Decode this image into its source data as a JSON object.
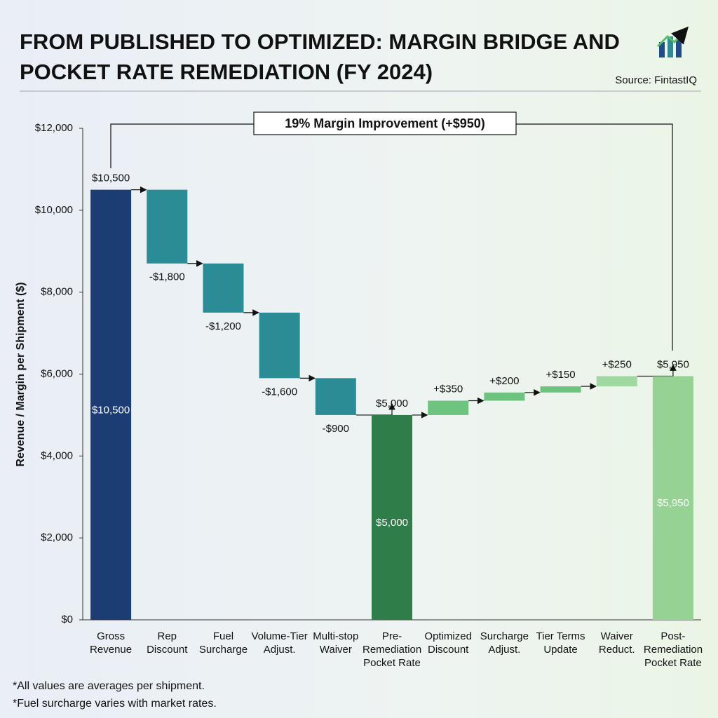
{
  "chart_data": {
    "type": "waterfall",
    "title": "FROM PUBLISHED TO OPTIMIZED: MARGIN BRIDGE AND POCKET RATE REMEDIATION (FY 2024)",
    "source": "Source: FintastIQ",
    "y_label": "Revenue / Margin per Shipment ($)",
    "annotation": "19% Margin Improvement (+$950)",
    "footnotes": [
      "*All values are averages per shipment.",
      "*Fuel surcharge varies with market rates."
    ],
    "categories": [
      "Gross Revenue",
      "Rep Discount",
      "Fuel Surcharge",
      "Volume-Tier Adjust.",
      "Multi-stop Waiver",
      "Pre-Remediation Pocket Rate",
      "Optimized Discount",
      "Surcharge Adjust.",
      "Tier Terms Update",
      "Waiver Reduct.",
      "Post-Remediation Pocket Rate"
    ],
    "values": [
      10500,
      -1800,
      -1200,
      -1600,
      -900,
      5000,
      350,
      200,
      150,
      250,
      5950
    ],
    "value_labels": [
      "$10,500",
      "-$1,800",
      "-$1,200",
      "-$1,600",
      "-$900",
      "$5,000",
      "+$350",
      "+$200",
      "+$150",
      "+$250",
      "$5,950"
    ],
    "measure": [
      "total",
      "relative",
      "relative",
      "relative",
      "relative",
      "total",
      "relative",
      "relative",
      "relative",
      "relative",
      "total"
    ],
    "colors": [
      "#1b3d73",
      "#2a8d96",
      "#2a8d96",
      "#2a8d96",
      "#2a8d96",
      "#2f7d48",
      "#6cc47e",
      "#6cc47e",
      "#6cc47e",
      "#9fd8a0",
      "#96d294"
    ],
    "ylim": [
      0,
      12000
    ],
    "yticks": [
      {
        "value": 0,
        "label": "$0"
      },
      {
        "value": 2000,
        "label": "$2,000"
      },
      {
        "value": 4000,
        "label": "$4,000"
      },
      {
        "value": 6000,
        "label": "$6,000"
      },
      {
        "value": 8000,
        "label": "$8,000"
      },
      {
        "value": 10000,
        "label": "$10,000"
      },
      {
        "value": 12000,
        "label": "$12,000"
      }
    ]
  }
}
